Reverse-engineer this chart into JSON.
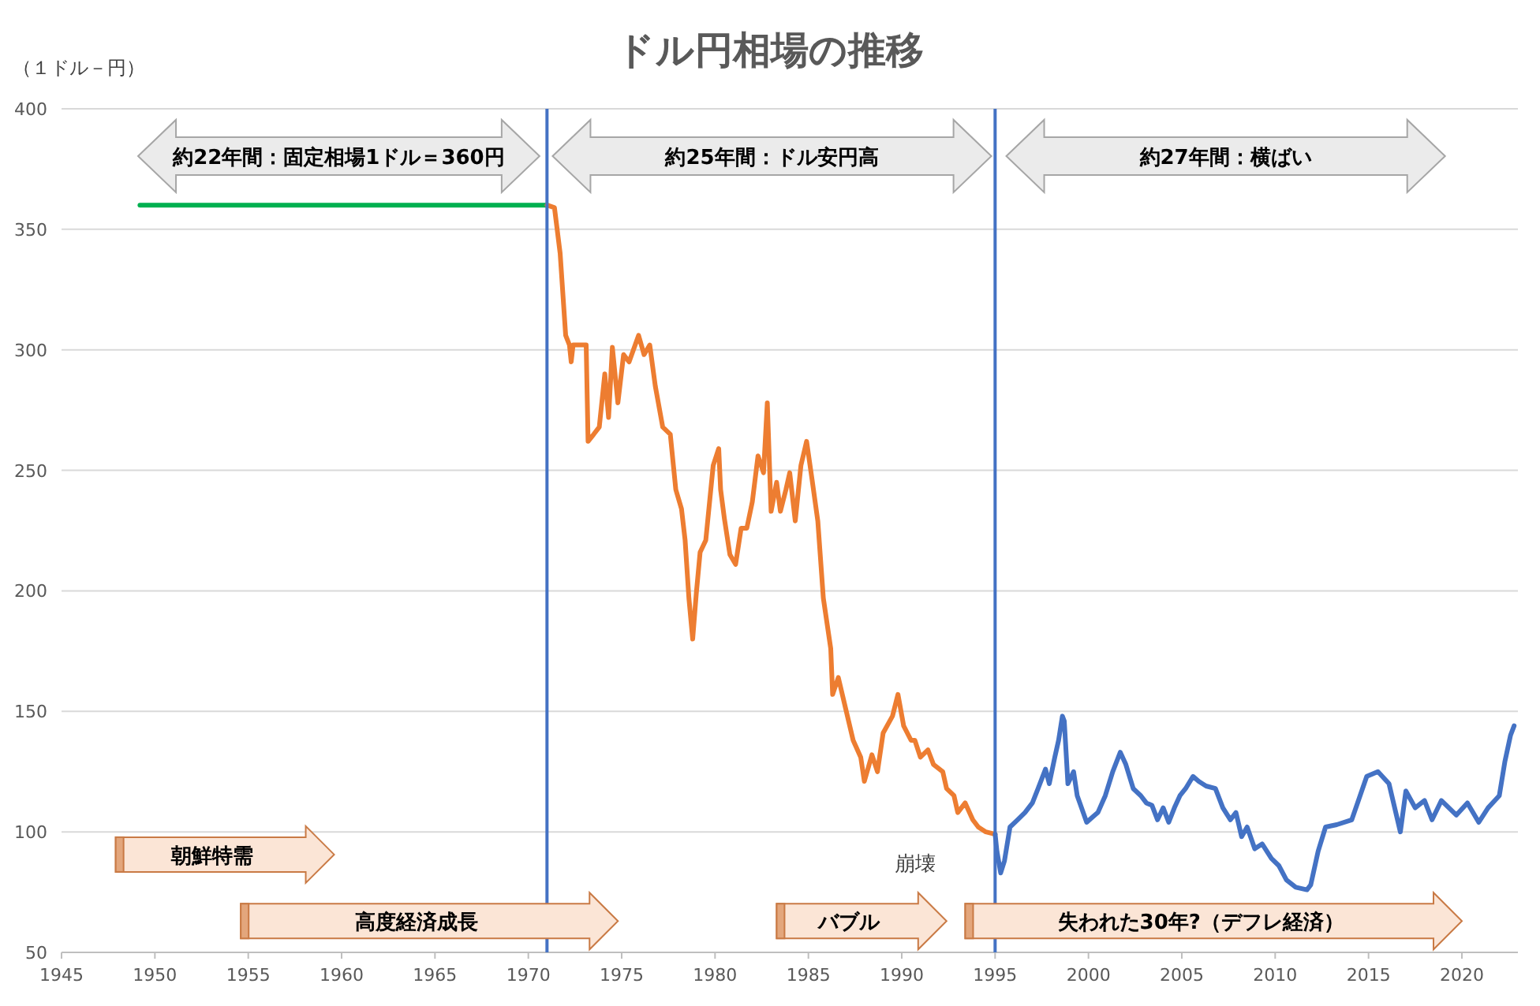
{
  "chart_data": {
    "type": "line",
    "title": "ドル円相場の推移",
    "ylabel": "（１ドル－円）",
    "xlim": [
      1945,
      2023
    ],
    "xticks": [
      1945,
      1950,
      1955,
      1960,
      1965,
      1970,
      1975,
      1980,
      1985,
      1990,
      1995,
      2000,
      2005,
      2010,
      2015,
      2020
    ],
    "ylim": [
      50,
      400
    ],
    "yticks": [
      50,
      100,
      150,
      200,
      250,
      300,
      350,
      400
    ],
    "grid": "y",
    "marker": "none",
    "line_style": "solid",
    "series": [
      {
        "color": "#00b050",
        "x": [
          1949.2,
          1971.0
        ],
        "values": [
          360,
          360
        ]
      },
      {
        "color": "#ed7d31",
        "x": [
          1971.0,
          1971.4,
          1971.7,
          1972.0,
          1972.2,
          1972.3,
          1972.4,
          1973.1,
          1973.2,
          1973.5,
          1973.8,
          1974.1,
          1974.3,
          1974.5,
          1974.8,
          1975.1,
          1975.4,
          1975.9,
          1976.2,
          1976.5,
          1976.8,
          1977.2,
          1977.6,
          1977.9,
          1978.2,
          1978.4,
          1978.6,
          1978.8,
          1979.0,
          1979.2,
          1979.5,
          1979.9,
          1980.2,
          1980.3,
          1980.5,
          1980.8,
          1981.1,
          1981.4,
          1981.7,
          1982.0,
          1982.3,
          1982.6,
          1982.8,
          1983.0,
          1983.3,
          1983.5,
          1983.8,
          1984.0,
          1984.3,
          1984.6,
          1984.9,
          1985.2,
          1985.5,
          1985.8,
          1986.2,
          1986.3,
          1986.6,
          1987.0,
          1987.4,
          1987.8,
          1988.0,
          1988.4,
          1988.7,
          1989.0,
          1989.5,
          1989.8,
          1990.1,
          1990.5,
          1990.7,
          1991.0,
          1991.4,
          1991.7,
          1992.2,
          1992.4,
          1992.8,
          1993.0,
          1993.4,
          1993.8,
          1994.1,
          1994.5,
          1995.0
        ],
        "values": [
          360,
          359,
          340,
          306,
          302,
          295,
          302,
          302,
          262,
          265,
          268,
          290,
          272,
          301,
          278,
          298,
          295,
          306,
          298,
          302,
          285,
          268,
          265,
          242,
          234,
          221,
          197,
          180,
          199,
          216,
          221,
          252,
          259,
          242,
          230,
          215,
          211,
          226,
          226,
          237,
          256,
          249,
          278,
          233,
          245,
          233,
          242,
          249,
          229,
          252,
          262,
          246,
          229,
          197,
          176,
          157,
          164,
          151,
          138,
          131,
          121,
          132,
          125,
          141,
          148,
          157,
          144,
          138,
          138,
          131,
          134,
          128,
          125,
          118,
          115,
          108,
          112,
          105,
          102,
          100,
          99
        ]
      },
      {
        "color": "#4472c4",
        "x": [
          1995.0,
          1995.1,
          1995.3,
          1995.5,
          1995.8,
          1996.2,
          1996.6,
          1997.0,
          1997.3,
          1997.7,
          1997.9,
          1998.2,
          1998.4,
          1998.6,
          1998.7,
          1998.9,
          1999.2,
          1999.4,
          1999.9,
          2000.2,
          2000.5,
          2000.9,
          2001.3,
          2001.7,
          2002.0,
          2002.4,
          2002.8,
          2003.1,
          2003.4,
          2003.7,
          2004.0,
          2004.3,
          2004.6,
          2004.9,
          2005.2,
          2005.6,
          2005.9,
          2006.3,
          2006.8,
          2007.2,
          2007.6,
          2007.9,
          2008.2,
          2008.5,
          2008.9,
          2009.3,
          2009.8,
          2010.2,
          2010.6,
          2011.1,
          2011.7,
          2011.9,
          2012.3,
          2012.7,
          2013.3,
          2014.1,
          2014.9,
          2015.5,
          2016.1,
          2016.7,
          2017.0,
          2017.5,
          2018.0,
          2018.4,
          2018.9,
          2019.7,
          2020.3,
          2020.9,
          2021.4,
          2022.0,
          2022.3,
          2022.6,
          2022.8
        ],
        "values": [
          99,
          92,
          83,
          88,
          102,
          105,
          108,
          112,
          118,
          126,
          120,
          131,
          138,
          148,
          146,
          120,
          125,
          115,
          104,
          106,
          108,
          115,
          125,
          133,
          128,
          118,
          115,
          112,
          111,
          105,
          110,
          104,
          110,
          115,
          118,
          123,
          121,
          119,
          118,
          110,
          105,
          108,
          98,
          102,
          93,
          95,
          89,
          86,
          80,
          77,
          76,
          78,
          92,
          102,
          103,
          105,
          123,
          125,
          120,
          100,
          117,
          110,
          113,
          105,
          113,
          107,
          112,
          104,
          110,
          115,
          129,
          140,
          144
        ]
      }
    ],
    "ref_lines": [
      {
        "axis": "x",
        "value": 1971,
        "color": "#4472c4"
      },
      {
        "axis": "x",
        "value": 1995,
        "color": "#4472c4"
      }
    ],
    "annotations": [
      "約22年間：固定相場1ドル＝360円",
      "約25年間：ドル安円高",
      "約27年間：横ばい",
      "朝鮮特需",
      "高度経済成長",
      "バブル",
      "崩壊",
      "失われた30年?（デフレ経済）"
    ]
  }
}
